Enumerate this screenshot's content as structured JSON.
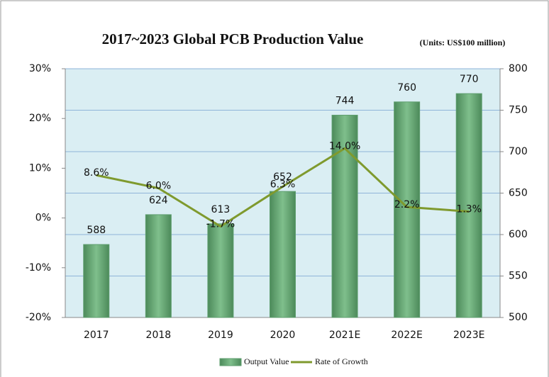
{
  "chart_data": {
    "type": "bar",
    "title": "2017~2023 Global PCB Production Value",
    "subtitle": "(Units: US$100 million)",
    "categories": [
      "2017",
      "2018",
      "2019",
      "2020",
      "2021E",
      "2022E",
      "2023E"
    ],
    "series": [
      {
        "name": "Output Value",
        "type": "bar",
        "axis": "y2",
        "color": "#5e9e6e",
        "values": [
          588,
          624,
          613,
          652,
          744,
          760,
          770
        ]
      },
      {
        "name": "Rate of Growth",
        "type": "line",
        "axis": "y",
        "color": "#7f9a2e",
        "values": [
          8.6,
          6.0,
          -1.7,
          6.3,
          14.0,
          2.2,
          1.3
        ],
        "value_labels": [
          "8.6%",
          "6.0%",
          "-1.7%",
          "6.3%",
          "14.0%",
          "2.2%",
          "1.3%"
        ]
      }
    ],
    "ylim": [
      -20,
      30
    ],
    "yticks": [
      {
        "value": -20,
        "label": "-20%"
      },
      {
        "value": -10,
        "label": "-10%"
      },
      {
        "value": 0,
        "label": "0%"
      },
      {
        "value": 10,
        "label": "10%"
      },
      {
        "value": 20,
        "label": "20%"
      },
      {
        "value": 30,
        "label": "30%"
      }
    ],
    "y2lim": [
      500,
      800
    ],
    "y2ticks": [
      500,
      550,
      600,
      650,
      700,
      750,
      800
    ],
    "grid": true,
    "legend": "bottom"
  }
}
